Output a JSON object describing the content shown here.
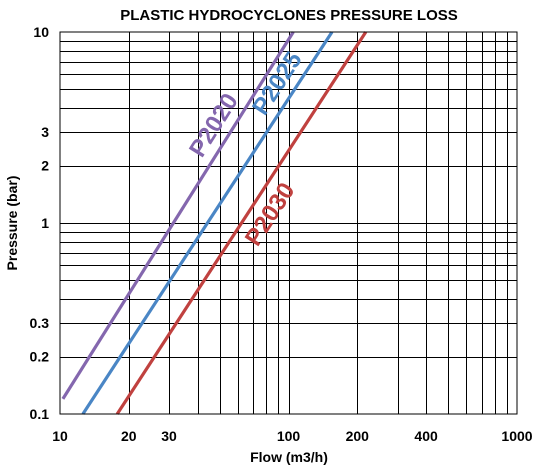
{
  "chart_data": {
    "type": "line",
    "title": "PLASTIC HYDROCYCLONES PRESSURE LOSS",
    "xlabel": "Flow (m3/h)",
    "ylabel": "Pressure (bar)",
    "x_scale": "log",
    "y_scale": "log",
    "xlim": [
      10,
      1000
    ],
    "ylim": [
      0.1,
      10
    ],
    "x_ticks": [
      10,
      20,
      30,
      100,
      200,
      400,
      1000
    ],
    "x_tick_labels": [
      "10",
      "20",
      "30",
      "100",
      "200",
      "400",
      "1000"
    ],
    "y_ticks": [
      0.1,
      0.2,
      0.3,
      1,
      2,
      3,
      10
    ],
    "y_tick_labels": [
      "0.1",
      "0.2",
      "0.3",
      "1",
      "2",
      "3",
      "10"
    ],
    "grid": true,
    "legend": "none",
    "series": [
      {
        "name": "P2020",
        "color": "#8467AE",
        "x": [
          10.3,
          105
        ],
        "y": [
          0.12,
          10
        ]
      },
      {
        "name": "P2025",
        "color": "#4A86C5",
        "x": [
          12.6,
          155
        ],
        "y": [
          0.1,
          10
        ]
      },
      {
        "name": "P2030",
        "color": "#C0413F",
        "x": [
          17.8,
          218
        ],
        "y": [
          0.1,
          10
        ]
      }
    ]
  }
}
